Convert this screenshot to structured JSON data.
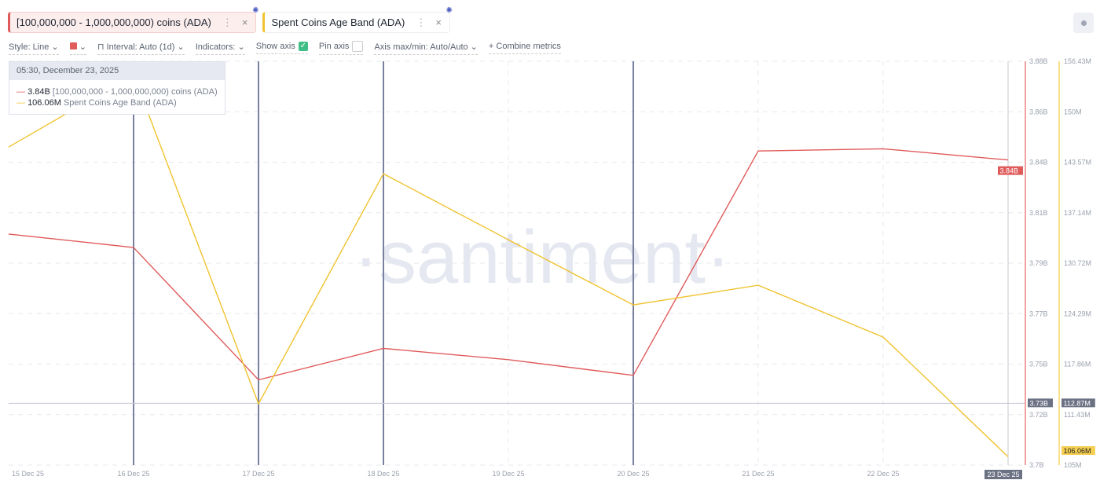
{
  "tabs": [
    {
      "label": "[100,000,000 - 1,000,000,000) coins (ADA)",
      "color": "#e05a5a"
    },
    {
      "label": "Spent Coins Age Band (ADA)",
      "color": "#f0c330"
    }
  ],
  "toolbar": {
    "style": "Style: Line",
    "interval": "Interval: Auto (1d)",
    "indicators": "Indicators:",
    "show_axis": "Show axis",
    "show_axis_checked": true,
    "pin_axis": "Pin axis",
    "pin_axis_checked": false,
    "axis_maxmin": "Axis max/min: Auto/Auto",
    "combine": "+ Combine metrics"
  },
  "tooltip": {
    "date": "05:30, December 23, 2025",
    "rows": [
      {
        "value": "3.84B",
        "label": "[100,000,000 - 1,000,000,000) coins (ADA)"
      },
      {
        "value": "106.06M",
        "label": "Spent Coins Age Band (ADA)"
      }
    ]
  },
  "watermark": "·santiment·",
  "chart_data": {
    "type": "line",
    "categories": [
      "15 Dec 25",
      "16 Dec 25",
      "17 Dec 25",
      "18 Dec 25",
      "19 Dec 25",
      "20 Dec 25",
      "21 Dec 25",
      "22 Dec 25",
      "23 Dec 25"
    ],
    "series": [
      {
        "name": "[100,000,000 - 1,000,000,000) coins (ADA)",
        "color": "#e05a5a",
        "unit": "B",
        "ylim": [
          3.7,
          3.88
        ],
        "values": [
          3.803,
          3.797,
          3.738,
          3.752,
          3.747,
          3.74,
          3.84,
          3.841,
          3.836
        ],
        "ticks": [
          "3.88B",
          "3.86B",
          "3.84B",
          "3.81B",
          "3.79B",
          "3.77B",
          "3.75B",
          "3.72B",
          "3.7B"
        ],
        "tick_values": [
          3.88,
          3.86,
          3.84,
          3.81,
          3.79,
          3.77,
          3.75,
          3.72,
          3.7
        ],
        "current_label": "3.84B"
      },
      {
        "name": "Spent Coins Age Band (ADA)",
        "color": "#f0c330",
        "unit": "M",
        "ylim": [
          105,
          156.43
        ],
        "values": [
          145.5,
          154.7,
          112.8,
          142.1,
          133.7,
          125.4,
          127.9,
          121.3,
          106.06
        ],
        "ticks": [
          "156.43M",
          "150M",
          "143.57M",
          "137.14M",
          "130.72M",
          "124.29M",
          "117.86M",
          "111.43M",
          "105M"
        ],
        "tick_values": [
          156.43,
          150,
          143.57,
          137.14,
          130.72,
          124.29,
          117.86,
          111.43,
          105
        ],
        "current_label": "106.06M"
      }
    ],
    "event_markers": [
      "16 Dec 25",
      "17 Dec 25",
      "18 Dec 25",
      "20 Dec 25"
    ],
    "crosshair": {
      "x": "23 Dec 25",
      "y_left": "3.73B",
      "y_right": "112.87M",
      "x_label": "23 Dec 25"
    }
  }
}
